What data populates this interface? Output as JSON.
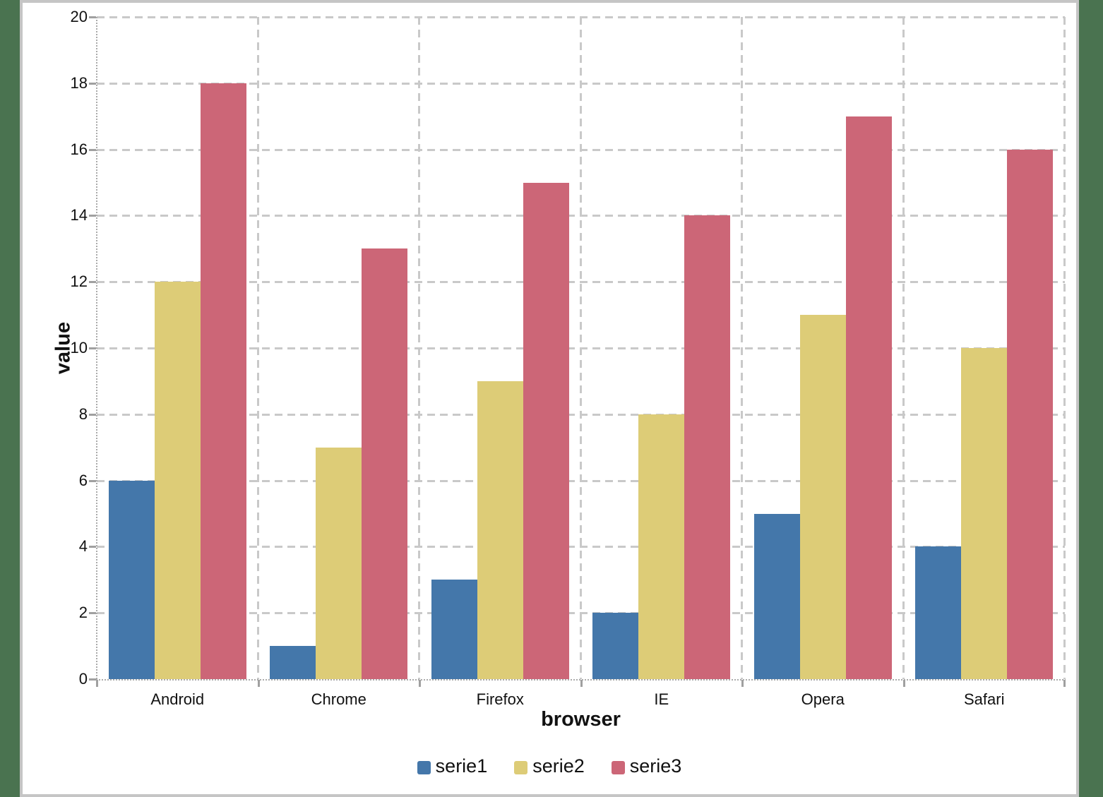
{
  "chart_data": {
    "type": "bar",
    "title": "",
    "xlabel": "browser",
    "ylabel": "value",
    "categories": [
      "Android",
      "Chrome",
      "Firefox",
      "IE",
      "Opera",
      "Safari"
    ],
    "series": [
      {
        "name": "serie1",
        "color": "#4477AA",
        "values": [
          6,
          1,
          3,
          2,
          5,
          4
        ]
      },
      {
        "name": "serie2",
        "color": "#DDCC77",
        "values": [
          12,
          7,
          9,
          8,
          11,
          10
        ]
      },
      {
        "name": "serie3",
        "color": "#CC6677",
        "values": [
          18,
          13,
          15,
          14,
          17,
          16
        ]
      }
    ],
    "ylim": [
      0,
      20
    ],
    "ytick_step": 2,
    "grid": "dashed horizontal and vertical",
    "legend_position": "bottom"
  },
  "style": {
    "background_color": "#4A7350",
    "panel_color": "#FFFFFF",
    "panel_border_color": "#C5C5C5",
    "grid_color": "#C9C9C9",
    "axis_color": "#AAAAAA",
    "text_color": "#111111"
  }
}
